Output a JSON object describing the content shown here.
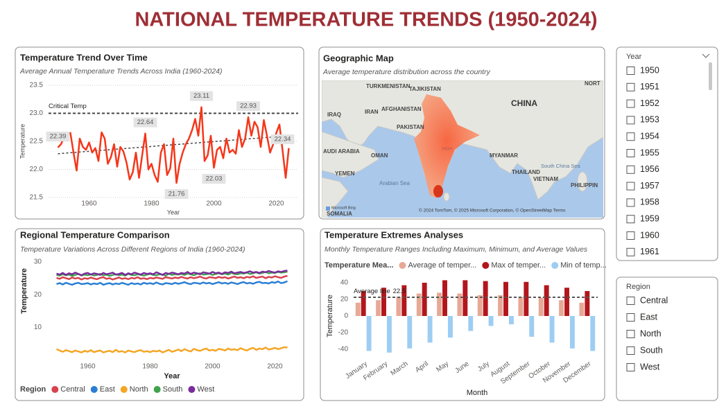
{
  "title": "NATIONAL TEMPERATURE TRENDS (1950-2024)",
  "chart_data": [
    {
      "type": "line",
      "title": "Temperature Trend Over Time",
      "subtitle": "Average Annual Temperature Trends Across India (1960-2024)",
      "x_label": "Year",
      "y_label": "Temperature",
      "x": [
        1950,
        1951,
        1952,
        1953,
        1954,
        1955,
        1956,
        1957,
        1958,
        1959,
        1960,
        1961,
        1962,
        1963,
        1964,
        1965,
        1966,
        1967,
        1968,
        1969,
        1970,
        1971,
        1972,
        1973,
        1974,
        1975,
        1976,
        1977,
        1978,
        1979,
        1980,
        1981,
        1982,
        1983,
        1984,
        1985,
        1986,
        1987,
        1988,
        1989,
        1990,
        1991,
        1992,
        1993,
        1994,
        1995,
        1996,
        1997,
        1998,
        1999,
        2000,
        2001,
        2002,
        2003,
        2004,
        2005,
        2006,
        2007,
        2008,
        2009,
        2010,
        2011,
        2012,
        2013,
        2014,
        2015,
        2016,
        2017,
        2018,
        2019,
        2020,
        2021,
        2022,
        2023,
        2024
      ],
      "values": [
        22.39,
        22.45,
        22.58,
        22.62,
        22.65,
        22.3,
        21.98,
        22.55,
        22.4,
        22.35,
        22.48,
        22.3,
        22.38,
        22.15,
        22.66,
        22.55,
        22.1,
        22.22,
        22.45,
        22.05,
        22.4,
        22.32,
        22.12,
        21.82,
        21.95,
        22.3,
        21.85,
        22.25,
        22.64,
        22.0,
        22.1,
        21.9,
        21.78,
        22.3,
        22.45,
        21.9,
        22.02,
        22.55,
        21.76,
        22.1,
        22.3,
        22.45,
        22.55,
        22.7,
        22.9,
        22.6,
        23.11,
        22.15,
        22.25,
        22.6,
        22.03,
        22.35,
        22.4,
        22.2,
        22.55,
        22.3,
        22.35,
        22.28,
        22.7,
        22.4,
        22.55,
        22.93,
        22.6,
        22.85,
        22.75,
        22.4,
        22.88,
        22.6,
        22.3,
        22.45,
        22.65,
        22.8,
        22.34,
        21.85,
        22.38
      ],
      "value_labels": [
        "22.39",
        null,
        null,
        null,
        null,
        null,
        null,
        null,
        null,
        null,
        null,
        null,
        null,
        null,
        null,
        null,
        null,
        null,
        null,
        null,
        null,
        null,
        null,
        null,
        null,
        null,
        null,
        null,
        "22.64",
        null,
        null,
        null,
        null,
        null,
        null,
        null,
        null,
        null,
        "21.76",
        null,
        null,
        null,
        null,
        null,
        null,
        null,
        "23.11",
        null,
        null,
        null,
        "22.03",
        null,
        null,
        null,
        null,
        null,
        null,
        null,
        null,
        null,
        null,
        "22.93",
        null,
        null,
        null,
        null,
        null,
        null,
        null,
        null,
        null,
        null,
        "22.34",
        null,
        null
      ],
      "color": "#f5361a",
      "xlim": [
        1947,
        2027
      ],
      "xticks": [
        1960,
        1980,
        2000,
        2020
      ],
      "ylim": [
        21.5,
        23.5
      ],
      "yticks": [
        21.5,
        {
          "value": 22,
          "label": "22.0"
        },
        22.5,
        {
          "value": 23,
          "label": "23.0"
        },
        23.5
      ],
      "grid": true,
      "reference_line": {
        "label": "Critical Temp",
        "value": 23
      },
      "trendline": [
        22.28,
        22.6
      ]
    },
    {
      "type": "line",
      "title": "Regional Temperature Comparison",
      "subtitle": "Temperature Variations Across Different Regions of India (1960-2024)",
      "x_label": "Year",
      "y_label": "Temperature",
      "legend_title": "Region",
      "x": [
        1950,
        1951,
        1952,
        1953,
        1954,
        1955,
        1956,
        1957,
        1958,
        1959,
        1960,
        1961,
        1962,
        1963,
        1964,
        1965,
        1966,
        1967,
        1968,
        1969,
        1970,
        1971,
        1972,
        1973,
        1974,
        1975,
        1976,
        1977,
        1978,
        1979,
        1980,
        1981,
        1982,
        1983,
        1984,
        1985,
        1986,
        1987,
        1988,
        1989,
        1990,
        1991,
        1992,
        1993,
        1994,
        1995,
        1996,
        1997,
        1998,
        1999,
        2000,
        2001,
        2002,
        2003,
        2004,
        2005,
        2006,
        2007,
        2008,
        2009,
        2010,
        2011,
        2012,
        2013,
        2014,
        2015,
        2016,
        2017,
        2018,
        2019,
        2020,
        2021,
        2022,
        2023,
        2024
      ],
      "series": [
        {
          "name": "Central",
          "color": "#d7424e",
          "values": [
            25.1,
            24.8,
            25.3,
            25.0,
            24.7,
            25.2,
            24.9,
            25.1,
            24.6,
            25.0,
            24.8,
            25.2,
            24.9,
            24.7,
            25.1,
            25.3,
            24.8,
            25.0,
            24.6,
            24.9,
            25.2,
            24.8,
            25.0,
            24.7,
            25.1,
            24.9,
            25.3,
            24.8,
            25.0,
            24.7,
            25.1,
            24.9,
            25.2,
            25.0,
            24.8,
            25.3,
            25.1,
            24.9,
            25.2,
            25.0,
            25.4,
            25.1,
            24.9,
            25.3,
            25.0,
            25.2,
            25.5,
            25.1,
            24.9,
            25.3,
            25.2,
            25.0,
            25.4,
            25.1,
            25.3,
            24.9,
            25.2,
            25.5,
            25.1,
            25.3,
            25.0,
            25.4,
            25.2,
            25.6,
            25.1,
            25.3,
            25.5,
            25.0,
            25.4,
            25.2,
            25.6,
            25.3,
            25.1,
            25.5,
            25.7
          ]
        },
        {
          "name": "East",
          "color": "#2a7fd5",
          "values": [
            23.2,
            23.5,
            23.1,
            23.6,
            23.3,
            23.0,
            23.4,
            23.6,
            23.2,
            23.3,
            23.5,
            23.1,
            23.4,
            23.2,
            23.6,
            23.0,
            23.3,
            23.5,
            23.1,
            23.4,
            23.2,
            23.6,
            23.3,
            23.0,
            23.5,
            23.2,
            23.4,
            23.1,
            23.6,
            23.3,
            23.5,
            23.2,
            23.7,
            23.3,
            23.1,
            23.5,
            23.4,
            23.2,
            23.6,
            23.3,
            23.5,
            23.8,
            23.4,
            23.2,
            23.6,
            23.5,
            23.3,
            23.7,
            23.4,
            23.6,
            23.2,
            23.5,
            23.8,
            23.4,
            23.6,
            23.3,
            23.7,
            23.5,
            23.2,
            23.6,
            23.8,
            23.4,
            23.6,
            23.3,
            23.7,
            23.9,
            23.5,
            23.6,
            23.4,
            23.8,
            23.6,
            24.0,
            23.5,
            23.7,
            24.1
          ]
        },
        {
          "name": "North",
          "color": "#f5a524",
          "values": [
            3.4,
            3.0,
            2.6,
            3.1,
            2.8,
            2.5,
            3.0,
            2.7,
            2.4,
            2.9,
            2.6,
            3.1,
            2.5,
            2.8,
            3.0,
            2.4,
            2.7,
            2.9,
            2.5,
            3.2,
            2.6,
            2.8,
            2.4,
            3.0,
            2.7,
            2.5,
            2.9,
            3.1,
            2.6,
            2.8,
            2.5,
            2.9,
            2.7,
            3.0,
            2.4,
            2.8,
            3.2,
            2.6,
            2.9,
            3.3,
            2.8,
            3.4,
            3.0,
            2.7,
            3.5,
            3.1,
            2.9,
            3.3,
            3.6,
            3.0,
            3.2,
            2.9,
            3.5,
            3.3,
            3.0,
            3.6,
            3.2,
            3.4,
            3.1,
            3.7,
            3.3,
            3.0,
            3.5,
            3.8,
            3.2,
            3.6,
            3.4,
            3.9,
            3.3,
            3.5,
            3.8,
            3.4,
            3.7,
            4.0,
            3.9
          ]
        },
        {
          "name": "South",
          "color": "#3fa24c",
          "values": [
            26.0,
            25.8,
            26.2,
            25.9,
            26.1,
            25.7,
            26.0,
            26.3,
            25.8,
            26.1,
            25.9,
            26.2,
            25.8,
            26.0,
            26.3,
            25.9,
            26.1,
            25.7,
            26.0,
            26.2,
            25.9,
            26.1,
            25.8,
            26.3,
            26.0,
            25.9,
            26.2,
            26.0,
            25.8,
            26.1,
            26.3,
            26.0,
            25.9,
            26.2,
            26.1,
            25.8,
            26.4,
            26.0,
            26.2,
            26.1,
            26.3,
            26.0,
            26.4,
            26.2,
            25.9,
            26.3,
            26.5,
            26.1,
            26.2,
            26.4,
            26.0,
            26.3,
            26.5,
            26.2,
            26.4,
            26.1,
            26.6,
            26.3,
            26.2,
            26.5,
            26.4,
            26.7,
            26.3,
            26.5,
            26.8,
            26.4,
            26.6,
            26.9,
            26.5,
            26.7,
            26.6,
            26.9,
            26.7,
            26.8,
            27.0
          ]
        },
        {
          "name": "West",
          "color": "#7a2b9c",
          "values": [
            26.4,
            26.1,
            26.6,
            26.0,
            26.5,
            26.2,
            26.7,
            26.3,
            25.9,
            26.4,
            26.6,
            26.1,
            26.5,
            26.3,
            26.0,
            26.6,
            26.2,
            26.4,
            26.7,
            26.1,
            26.3,
            26.6,
            26.0,
            26.5,
            26.2,
            26.7,
            26.4,
            26.1,
            26.6,
            26.3,
            26.5,
            26.2,
            26.8,
            26.4,
            26.0,
            26.6,
            26.3,
            26.7,
            26.5,
            26.2,
            26.6,
            26.4,
            26.9,
            26.3,
            26.7,
            26.5,
            26.2,
            26.8,
            26.6,
            26.4,
            26.9,
            26.5,
            26.7,
            26.3,
            26.8,
            26.6,
            27.0,
            26.5,
            26.7,
            26.9,
            26.6,
            26.8,
            27.1,
            26.7,
            26.9,
            26.6,
            27.0,
            26.8,
            27.2,
            26.9,
            26.7,
            27.1,
            26.9,
            27.2,
            27.3
          ]
        }
      ],
      "xlim": [
        1947,
        2027
      ],
      "xticks": [
        1960,
        1980,
        2000,
        2020
      ],
      "ylim": [
        0,
        31
      ],
      "yticks": [
        10,
        20,
        30
      ],
      "grid": false
    },
    {
      "type": "bar",
      "title": "Temperature Extremes Analyses",
      "subtitle": "Monthly Temperature Ranges Including Maximum, Minimum, and Average Values",
      "x_label": "Month",
      "y_label": "Temperature",
      "legend_title": "Temperature Mea...",
      "categories": [
        "January",
        "February",
        "March",
        "April",
        "May",
        "June",
        "July",
        "August",
        "September",
        "October",
        "November",
        "December"
      ],
      "series": [
        {
          "name": "Average of temper...",
          "color": "#e6a996",
          "values": [
            16,
            19,
            23,
            27,
            28,
            27,
            25,
            25,
            23,
            22,
            19,
            16
          ]
        },
        {
          "name": "Max of temper...",
          "color": "#b2161c",
          "values": [
            30,
            34,
            37,
            40,
            43,
            43,
            42,
            41,
            41,
            37,
            34,
            30
          ]
        },
        {
          "name": "Min of temp...",
          "color": "#9ecdf3",
          "values": [
            -42,
            -44,
            -39,
            -32,
            -26,
            -18,
            -12,
            -10,
            -25,
            -32,
            -39,
            -42
          ]
        }
      ],
      "ylim": [
        -50,
        50
      ],
      "yticks": [
        -40,
        -20,
        0,
        20,
        40
      ],
      "grid": false,
      "average_line": {
        "label": "Average line",
        "value": 22.5
      }
    }
  ],
  "map": {
    "title": "Geographic Map",
    "subtitle": "Average temperature distribution across the country",
    "labels": [
      "TURKMENISTAN",
      "TAJIKISTAN",
      "NORT",
      "IRAQ",
      "IRAN",
      "AFGHANISTAN",
      "CHINA",
      "PAKISTAN",
      "INDIA",
      "AUDI ARABIA",
      "OMAN",
      "MYANMAR",
      "South China Sea",
      "YEMEN",
      "Arabian Sea",
      "THAILAND",
      "VIETNAM",
      "PHILIPPIN",
      "SOMALIA"
    ],
    "attribution": "© 2024 TomTom, © 2025 Microsoft Corporation, © OpenStreetMap  Terms",
    "logo_text": "Microsoft Bing"
  },
  "slicers": [
    {
      "title": "Year",
      "items": [
        1950,
        1951,
        1952,
        1953,
        1954,
        1955,
        1956,
        1957,
        1958,
        1959,
        1960,
        1961
      ]
    },
    {
      "title": "Region",
      "items": [
        "Central",
        "East",
        "North",
        "South",
        "West"
      ]
    }
  ]
}
